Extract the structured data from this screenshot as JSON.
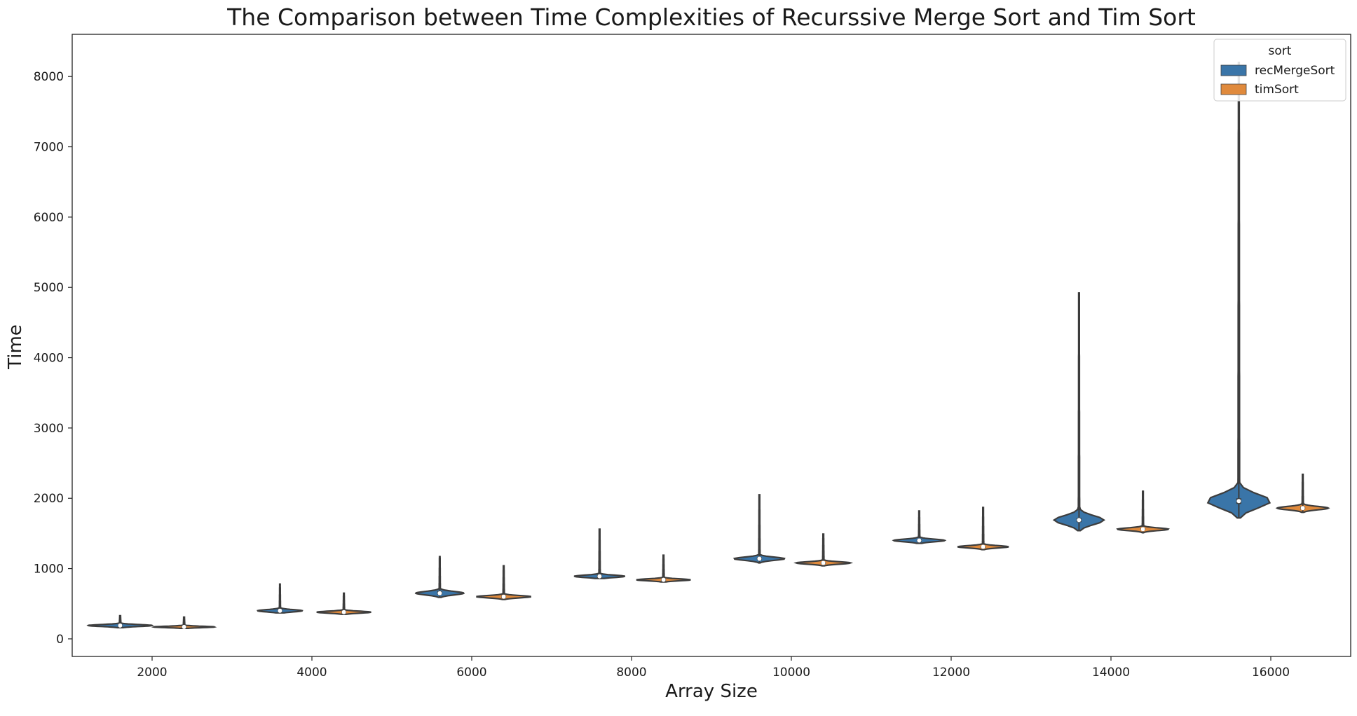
{
  "chart_data": {
    "type": "violin",
    "title": "The Comparison between Time Complexities of Recurssive Merge Sort and Tim Sort",
    "xlabel": "Array Size",
    "ylabel": "Time",
    "ylim": [
      -250,
      8600
    ],
    "y_ticks": [
      0,
      1000,
      2000,
      3000,
      4000,
      5000,
      6000,
      7000,
      8000
    ],
    "categories": [
      "2000",
      "4000",
      "6000",
      "8000",
      "10000",
      "12000",
      "14000",
      "16000"
    ],
    "legend": {
      "title": "sort",
      "position": "top-right"
    },
    "series": [
      {
        "name": "recMergeSort",
        "color": "#3a75a8",
        "median": [
          190,
          400,
          650,
          890,
          1140,
          1400,
          1690,
          1960
        ],
        "q1": [
          180,
          390,
          630,
          870,
          1120,
          1380,
          1660,
          1920
        ],
        "q3": [
          205,
          420,
          680,
          910,
          1160,
          1420,
          1720,
          2000
        ],
        "min": [
          160,
          370,
          590,
          860,
          1080,
          1360,
          1540,
          1720
        ],
        "max": [
          330,
          780,
          1170,
          1560,
          2050,
          1820,
          4920,
          8200
        ],
        "body_low": [
          165,
          375,
          600,
          865,
          1090,
          1365,
          1550,
          1730
        ],
        "body_high": [
          220,
          440,
          700,
          930,
          1180,
          1440,
          1800,
          2120
        ],
        "width": [
          1.0,
          0.7,
          0.75,
          0.8,
          0.8,
          0.8,
          0.78,
          1.0
        ]
      },
      {
        "name": "timSort",
        "color": "#e08a3c",
        "median": [
          170,
          380,
          600,
          840,
          1080,
          1310,
          1560,
          1860
        ],
        "q1": [
          160,
          370,
          585,
          825,
          1065,
          1295,
          1545,
          1840
        ],
        "q3": [
          180,
          395,
          615,
          855,
          1095,
          1325,
          1575,
          1880
        ],
        "min": [
          150,
          350,
          560,
          810,
          1040,
          1270,
          1510,
          1800
        ],
        "max": [
          310,
          650,
          1040,
          1190,
          1490,
          1870,
          2100,
          2340
        ],
        "body_low": [
          155,
          355,
          565,
          815,
          1045,
          1275,
          1515,
          1805
        ],
        "body_high": [
          195,
          410,
          630,
          870,
          1110,
          1340,
          1590,
          1900
        ],
        "width": [
          0.95,
          0.85,
          0.85,
          0.85,
          0.85,
          0.8,
          0.8,
          0.8
        ]
      }
    ]
  }
}
